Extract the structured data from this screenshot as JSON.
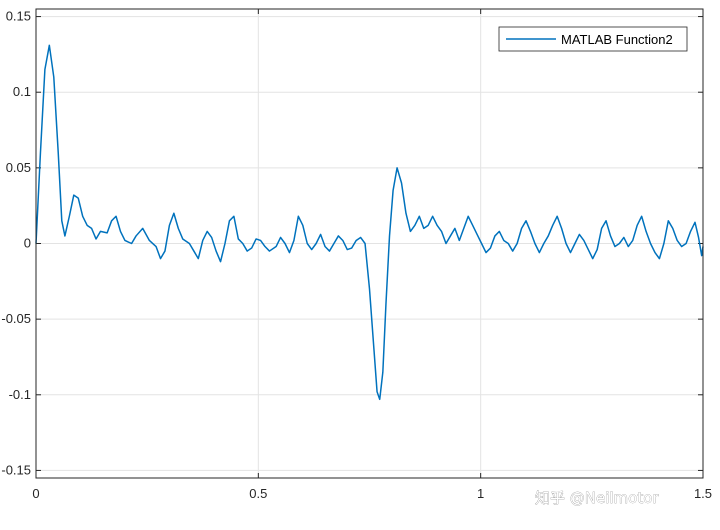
{
  "chart_data": {
    "type": "line",
    "title": "",
    "xlabel": "",
    "ylabel": "",
    "xlim": [
      0,
      1.5
    ],
    "ylim": [
      -0.155,
      0.155
    ],
    "grid": true,
    "legend_position": "top-right",
    "x_ticks": [
      {
        "value": 0,
        "label": "0"
      },
      {
        "value": 0.5,
        "label": "0.5"
      },
      {
        "value": 1,
        "label": "1"
      },
      {
        "value": 1.5,
        "label": "1.5"
      }
    ],
    "y_ticks": [
      {
        "value": 0.15,
        "label": "0.15"
      },
      {
        "value": 0.1,
        "label": "0.1"
      },
      {
        "value": 0.05,
        "label": "0.05"
      },
      {
        "value": 0,
        "label": "0"
      },
      {
        "value": -0.05,
        "label": "-0.05"
      },
      {
        "value": -0.1,
        "label": "-0.1"
      },
      {
        "value": -0.15,
        "label": "-0.15"
      }
    ],
    "series": [
      {
        "name": "MATLAB Function2",
        "color": "#0072BD",
        "points": [
          [
            0.0,
            0.0
          ],
          [
            0.01,
            0.06
          ],
          [
            0.02,
            0.115
          ],
          [
            0.03,
            0.131
          ],
          [
            0.04,
            0.11
          ],
          [
            0.05,
            0.06
          ],
          [
            0.058,
            0.015
          ],
          [
            0.065,
            0.005
          ],
          [
            0.075,
            0.018
          ],
          [
            0.085,
            0.032
          ],
          [
            0.095,
            0.03
          ],
          [
            0.105,
            0.018
          ],
          [
            0.115,
            0.012
          ],
          [
            0.125,
            0.01
          ],
          [
            0.135,
            0.003
          ],
          [
            0.145,
            0.008
          ],
          [
            0.16,
            0.007
          ],
          [
            0.17,
            0.015
          ],
          [
            0.18,
            0.018
          ],
          [
            0.19,
            0.008
          ],
          [
            0.2,
            0.002
          ],
          [
            0.215,
            0.0
          ],
          [
            0.225,
            0.005
          ],
          [
            0.24,
            0.01
          ],
          [
            0.255,
            0.002
          ],
          [
            0.27,
            -0.002
          ],
          [
            0.28,
            -0.01
          ],
          [
            0.29,
            -0.005
          ],
          [
            0.3,
            0.012
          ],
          [
            0.31,
            0.02
          ],
          [
            0.32,
            0.01
          ],
          [
            0.33,
            0.003
          ],
          [
            0.345,
            0.0
          ],
          [
            0.355,
            -0.005
          ],
          [
            0.365,
            -0.01
          ],
          [
            0.375,
            0.002
          ],
          [
            0.385,
            0.008
          ],
          [
            0.395,
            0.004
          ],
          [
            0.405,
            -0.005
          ],
          [
            0.415,
            -0.012
          ],
          [
            0.425,
            0.0
          ],
          [
            0.435,
            0.015
          ],
          [
            0.445,
            0.018
          ],
          [
            0.455,
            0.003
          ],
          [
            0.465,
            0.0
          ],
          [
            0.475,
            -0.005
          ],
          [
            0.485,
            -0.003
          ],
          [
            0.495,
            0.003
          ],
          [
            0.505,
            0.002
          ],
          [
            0.515,
            -0.002
          ],
          [
            0.525,
            -0.005
          ],
          [
            0.54,
            -0.002
          ],
          [
            0.55,
            0.004
          ],
          [
            0.56,
            0.0
          ],
          [
            0.57,
            -0.006
          ],
          [
            0.58,
            0.002
          ],
          [
            0.59,
            0.018
          ],
          [
            0.6,
            0.012
          ],
          [
            0.61,
            0.0
          ],
          [
            0.62,
            -0.004
          ],
          [
            0.63,
            0.0
          ],
          [
            0.64,
            0.006
          ],
          [
            0.65,
            -0.002
          ],
          [
            0.66,
            -0.005
          ],
          [
            0.67,
            0.0
          ],
          [
            0.68,
            0.005
          ],
          [
            0.69,
            0.002
          ],
          [
            0.7,
            -0.004
          ],
          [
            0.71,
            -0.003
          ],
          [
            0.72,
            0.002
          ],
          [
            0.73,
            0.004
          ],
          [
            0.74,
            0.0
          ],
          [
            0.75,
            -0.03
          ],
          [
            0.76,
            -0.07
          ],
          [
            0.767,
            -0.098
          ],
          [
            0.773,
            -0.103
          ],
          [
            0.78,
            -0.085
          ],
          [
            0.787,
            -0.04
          ],
          [
            0.795,
            0.005
          ],
          [
            0.803,
            0.035
          ],
          [
            0.812,
            0.05
          ],
          [
            0.822,
            0.04
          ],
          [
            0.832,
            0.02
          ],
          [
            0.842,
            0.008
          ],
          [
            0.852,
            0.012
          ],
          [
            0.862,
            0.018
          ],
          [
            0.872,
            0.01
          ],
          [
            0.882,
            0.012
          ],
          [
            0.892,
            0.018
          ],
          [
            0.902,
            0.012
          ],
          [
            0.912,
            0.008
          ],
          [
            0.922,
            0.0
          ],
          [
            0.932,
            0.005
          ],
          [
            0.942,
            0.01
          ],
          [
            0.952,
            0.002
          ],
          [
            0.962,
            0.01
          ],
          [
            0.972,
            0.018
          ],
          [
            0.982,
            0.012
          ],
          [
            0.992,
            0.006
          ],
          [
            1.002,
            0.0
          ],
          [
            1.012,
            -0.006
          ],
          [
            1.022,
            -0.003
          ],
          [
            1.032,
            0.005
          ],
          [
            1.042,
            0.008
          ],
          [
            1.052,
            0.002
          ],
          [
            1.062,
            0.0
          ],
          [
            1.072,
            -0.005
          ],
          [
            1.082,
            0.0
          ],
          [
            1.092,
            0.01
          ],
          [
            1.102,
            0.015
          ],
          [
            1.112,
            0.008
          ],
          [
            1.122,
            0.0
          ],
          [
            1.132,
            -0.006
          ],
          [
            1.142,
            0.0
          ],
          [
            1.152,
            0.005
          ],
          [
            1.162,
            0.012
          ],
          [
            1.172,
            0.018
          ],
          [
            1.182,
            0.01
          ],
          [
            1.192,
            0.0
          ],
          [
            1.202,
            -0.006
          ],
          [
            1.212,
            0.0
          ],
          [
            1.222,
            0.006
          ],
          [
            1.232,
            0.002
          ],
          [
            1.242,
            -0.004
          ],
          [
            1.252,
            -0.01
          ],
          [
            1.262,
            -0.004
          ],
          [
            1.272,
            0.01
          ],
          [
            1.282,
            0.015
          ],
          [
            1.292,
            0.005
          ],
          [
            1.302,
            -0.002
          ],
          [
            1.312,
            0.0
          ],
          [
            1.322,
            0.004
          ],
          [
            1.332,
            -0.002
          ],
          [
            1.342,
            0.002
          ],
          [
            1.352,
            0.012
          ],
          [
            1.362,
            0.018
          ],
          [
            1.372,
            0.008
          ],
          [
            1.382,
            0.0
          ],
          [
            1.392,
            -0.006
          ],
          [
            1.402,
            -0.01
          ],
          [
            1.412,
            0.0
          ],
          [
            1.422,
            0.015
          ],
          [
            1.432,
            0.01
          ],
          [
            1.442,
            0.002
          ],
          [
            1.452,
            -0.002
          ],
          [
            1.462,
            0.0
          ],
          [
            1.472,
            0.008
          ],
          [
            1.482,
            0.014
          ],
          [
            1.49,
            0.004
          ],
          [
            1.497,
            -0.008
          ],
          [
            1.5,
            -0.002
          ]
        ]
      }
    ]
  },
  "watermark": "知乎 @Neilmotor"
}
